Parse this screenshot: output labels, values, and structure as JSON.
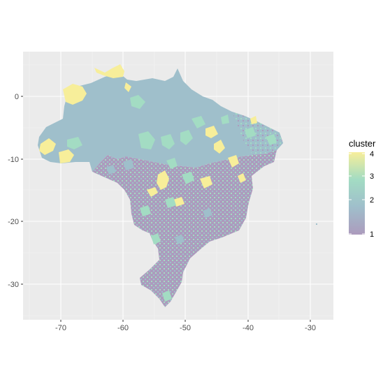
{
  "chart_data": {
    "type": "choropleth map",
    "x_ticks": [
      "-70",
      "-60",
      "-50",
      "-40",
      "-30"
    ],
    "y_ticks": [
      "0",
      "-10",
      "-20",
      "-30"
    ],
    "xlim": [
      -76.5,
      -26.5
    ],
    "ylim": [
      -35.5,
      7.5
    ],
    "grid": true,
    "legend": {
      "title": "cluster",
      "position": "right",
      "labels": [
        "4",
        "3",
        "2",
        "1"
      ],
      "colors": [
        "#f7ee9a",
        "#a3dcc3",
        "#9fbfcb",
        "#ac9bbd"
      ]
    }
  }
}
